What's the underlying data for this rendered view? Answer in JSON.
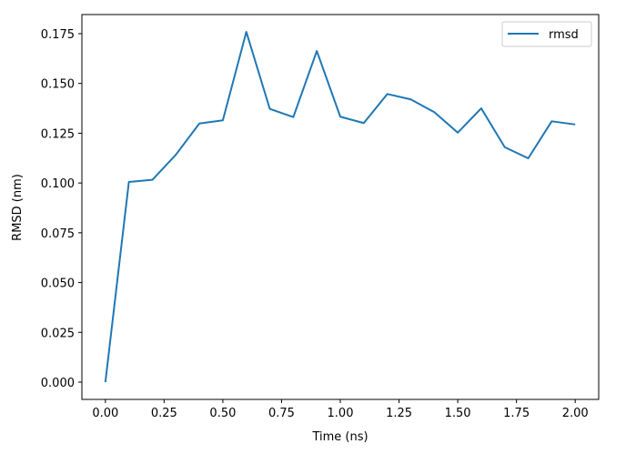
{
  "chart_data": {
    "type": "line",
    "title": "",
    "xlabel": "Time (ns)",
    "ylabel": "RMSD (nm)",
    "xlim": [
      -0.1,
      2.1
    ],
    "ylim": [
      -0.00868,
      0.1846
    ],
    "xticks": [
      0,
      0.25,
      0.5,
      0.75,
      1.0,
      1.25,
      1.5,
      1.75,
      2.0
    ],
    "xtick_labels": [
      "0.00",
      "0.25",
      "0.50",
      "0.75",
      "1.00",
      "1.25",
      "1.50",
      "1.75",
      "2.00"
    ],
    "yticks": [
      0,
      0.025,
      0.05,
      0.075,
      0.1,
      0.125,
      0.15,
      0.175
    ],
    "ytick_labels": [
      "0.000",
      "0.025",
      "0.050",
      "0.075",
      "0.100",
      "0.125",
      "0.150",
      "0.175"
    ],
    "grid": false,
    "legend_position": "top-right",
    "series": [
      {
        "name": "rmsd",
        "color": "#1f77b4",
        "x": [
          0.0,
          0.1,
          0.2,
          0.3,
          0.4,
          0.5,
          0.6,
          0.7,
          0.8,
          0.9,
          1.0,
          1.1,
          1.2,
          1.3,
          1.4,
          1.5,
          1.6,
          1.7,
          1.8,
          1.9,
          2.0
        ],
        "y": [
          0.0,
          0.1005,
          0.1016,
          0.1142,
          0.1299,
          0.1315,
          0.1759,
          0.1372,
          0.1331,
          0.1663,
          0.1333,
          0.1301,
          0.1447,
          0.142,
          0.1356,
          0.1253,
          0.1375,
          0.118,
          0.1124,
          0.131,
          0.1294
        ]
      }
    ]
  }
}
